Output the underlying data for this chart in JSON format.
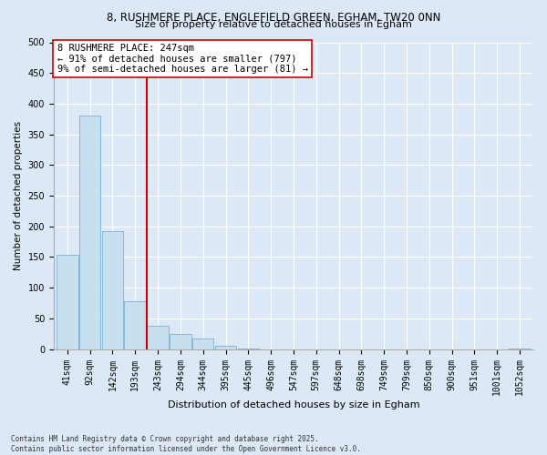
{
  "title": "8, RUSHMERE PLACE, ENGLEFIELD GREEN, EGHAM, TW20 0NN",
  "subtitle": "Size of property relative to detached houses in Egham",
  "xlabel": "Distribution of detached houses by size in Egham",
  "ylabel": "Number of detached properties",
  "bar_color": "#c8dff0",
  "bar_edge_color": "#7bafd4",
  "categories": [
    "41sqm",
    "92sqm",
    "142sqm",
    "193sqm",
    "243sqm",
    "294sqm",
    "344sqm",
    "395sqm",
    "445sqm",
    "496sqm",
    "547sqm",
    "597sqm",
    "648sqm",
    "698sqm",
    "749sqm",
    "799sqm",
    "850sqm",
    "900sqm",
    "951sqm",
    "1001sqm",
    "1052sqm"
  ],
  "values": [
    153,
    380,
    192,
    78,
    38,
    25,
    17,
    6,
    1,
    0,
    0,
    0,
    0,
    0,
    0,
    0,
    0,
    0,
    0,
    0,
    1
  ],
  "vline_x_index": 3.5,
  "vline_color": "#cc0000",
  "annotation_text": "8 RUSHMERE PLACE: 247sqm\n← 91% of detached houses are smaller (797)\n9% of semi-detached houses are larger (81) →",
  "annotation_box_color": "white",
  "annotation_box_edge": "#cc0000",
  "ylim": [
    0,
    500
  ],
  "yticks": [
    0,
    50,
    100,
    150,
    200,
    250,
    300,
    350,
    400,
    450,
    500
  ],
  "footer_line1": "Contains HM Land Registry data © Crown copyright and database right 2025.",
  "footer_line2": "Contains public sector information licensed under the Open Government Licence v3.0.",
  "background_color": "#dce8f5",
  "plot_background": "#dce8f5",
  "grid_color": "white",
  "title_fontsize": 8.5,
  "subtitle_fontsize": 8.0,
  "ylabel_fontsize": 7.5,
  "xlabel_fontsize": 8.0,
  "tick_fontsize": 7.0,
  "annot_fontsize": 7.5,
  "footer_fontsize": 5.5
}
